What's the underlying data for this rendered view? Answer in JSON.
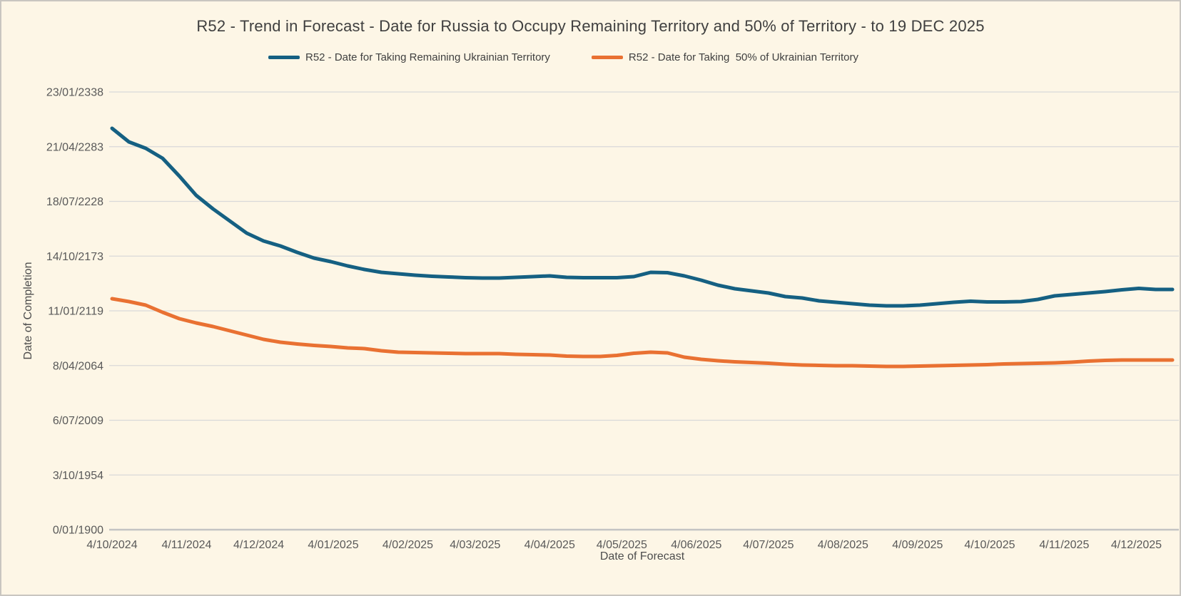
{
  "title": "R52 - Trend in Forecast - Date for Russia to Occupy Remaining Territory and 50% of Territory - to 19 DEC 2025",
  "colors": {
    "background": "#FDF6E6",
    "frame_border": "#C9C6C0",
    "gridline": "#D9D9D9",
    "axis_line": "#C3C3C3",
    "tick_text": "#595959",
    "title_text": "#3F3F3F",
    "series_remaining": "#156082",
    "series_fifty_percent": "#E97132"
  },
  "chart_data": {
    "type": "line",
    "title": "R52 - Trend in Forecast - Date for Russia to Occupy Remaining Territory and 50% of Territory - to 19 DEC 2025",
    "xlabel": "Date of Forecast",
    "ylabel": "Date of Completion",
    "legend_position": "top",
    "grid": "horizontal-only",
    "y_axis_note": "Excel serial day numbers rendered as dates; 0 = 0/01/1900, major unit 20000 days",
    "ylim": [
      0,
      160000
    ],
    "y_ticks": [
      {
        "label": "23/01/2338",
        "value": 160000
      },
      {
        "label": "21/04/2283",
        "value": 140000
      },
      {
        "label": "18/07/2228",
        "value": 120000
      },
      {
        "label": "14/10/2173",
        "value": 100000
      },
      {
        "label": "11/01/2119",
        "value": 80000
      },
      {
        "label": "8/04/2064",
        "value": 60000
      },
      {
        "label": "6/07/2009",
        "value": 40000
      },
      {
        "label": "3/10/1954",
        "value": 20000
      },
      {
        "label": "0/01/1900",
        "value": 0
      }
    ],
    "x_tick_labels": [
      "4/10/2024",
      "4/11/2024",
      "4/12/2024",
      "4/01/2025",
      "4/02/2025",
      "4/03/2025",
      "4/04/2025",
      "4/05/2025",
      "4/06/2025",
      "4/07/2025",
      "4/08/2025",
      "4/09/2025",
      "4/10/2025",
      "4/11/2025",
      "4/12/2025"
    ],
    "x": [
      "4/10/2024",
      "11/10/2024",
      "18/10/2024",
      "25/10/2024",
      "1/11/2024",
      "8/11/2024",
      "15/11/2024",
      "22/11/2024",
      "29/11/2024",
      "6/12/2024",
      "13/12/2024",
      "20/12/2024",
      "27/12/2024",
      "3/01/2025",
      "10/01/2025",
      "17/01/2025",
      "24/01/2025",
      "31/01/2025",
      "7/02/2025",
      "14/02/2025",
      "21/02/2025",
      "28/02/2025",
      "7/03/2025",
      "14/03/2025",
      "21/03/2025",
      "28/03/2025",
      "4/04/2025",
      "11/04/2025",
      "18/04/2025",
      "25/04/2025",
      "2/05/2025",
      "9/05/2025",
      "16/05/2025",
      "23/05/2025",
      "30/05/2025",
      "6/06/2025",
      "13/06/2025",
      "20/06/2025",
      "27/06/2025",
      "4/07/2025",
      "11/07/2025",
      "18/07/2025",
      "25/07/2025",
      "1/08/2025",
      "8/08/2025",
      "15/08/2025",
      "22/08/2025",
      "29/08/2025",
      "5/09/2025",
      "12/09/2025",
      "19/09/2025",
      "26/09/2025",
      "3/10/2025",
      "10/10/2025",
      "17/10/2025",
      "24/10/2025",
      "31/10/2025",
      "7/11/2025",
      "14/11/2025",
      "21/11/2025",
      "28/11/2025",
      "5/12/2025",
      "12/12/2025",
      "19/12/2025"
    ],
    "series": [
      {
        "name": "R52 - Date for Taking Remaining Ukrainian Territory",
        "color": "#156082",
        "values": [
          146710,
          141760,
          139420,
          135770,
          129250,
          122220,
          117270,
          112840,
          108410,
          105540,
          103710,
          101370,
          99280,
          97980,
          96420,
          95120,
          94070,
          93550,
          93030,
          92640,
          92380,
          92120,
          91990,
          91990,
          92250,
          92510,
          92770,
          92250,
          92120,
          92120,
          92120,
          92510,
          94070,
          93940,
          92770,
          91210,
          89380,
          88080,
          87300,
          86520,
          85210,
          84690,
          83650,
          83130,
          82610,
          82090,
          81830,
          81830,
          82090,
          82610,
          83130,
          83520,
          83260,
          83260,
          83390,
          84170,
          85470,
          85990,
          86520,
          87040,
          87690,
          88210,
          87820,
          87820
        ]
      },
      {
        "name": "R52 - Date for Taking  50% of Ukrainian Territory",
        "color": "#E97132",
        "values": [
          84430,
          83390,
          82090,
          79480,
          77130,
          75570,
          74270,
          72700,
          71140,
          69580,
          68540,
          67880,
          67360,
          66970,
          66450,
          66190,
          65410,
          64890,
          64760,
          64630,
          64500,
          64370,
          64370,
          64370,
          64100,
          63970,
          63840,
          63450,
          63320,
          63320,
          63710,
          64500,
          64890,
          64630,
          63060,
          62280,
          61760,
          61370,
          61110,
          60850,
          60460,
          60200,
          60070,
          59940,
          59940,
          59800,
          59680,
          59680,
          59800,
          59940,
          60070,
          60200,
          60330,
          60590,
          60720,
          60850,
          60980,
          61240,
          61630,
          61890,
          62020,
          62020,
          62020,
          62020
        ]
      }
    ]
  }
}
